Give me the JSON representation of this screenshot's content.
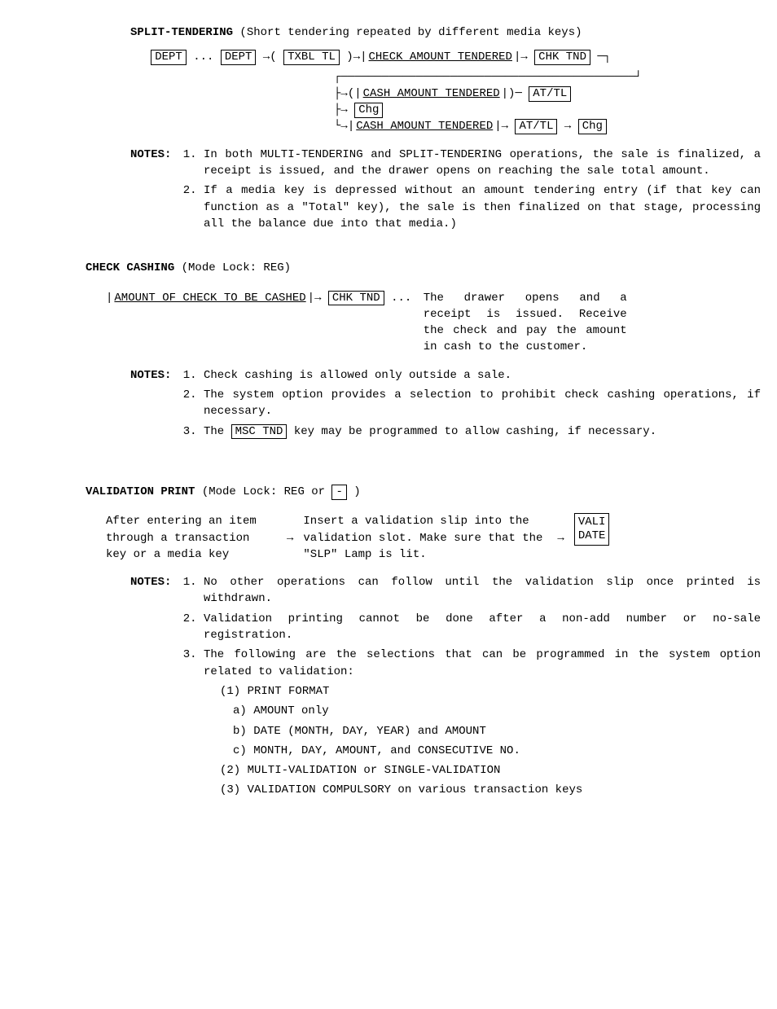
{
  "split": {
    "title": "SPLIT-TENDERING",
    "subtitle": " (Short tendering repeated by different media keys)",
    "dept": "DEPT",
    "ellipsis": " ... ",
    "txbl": "TXBL TL",
    "checkAmt": "CHECK AMOUNT TENDERED",
    "chkTnd": "CHK TND",
    "cashAmt": "CASH AMOUNT TENDERED",
    "atTl": "AT/TL",
    "chg": "Chg",
    "notesLabel": "NOTES:",
    "note1": "In both MULTI-TENDERING and SPLIT-TENDERING operations, the sale is finalized, a receipt is issued, and the drawer opens on reaching the sale total amount.",
    "note2": "If a media key is depressed without an amount tendering entry (if that key can function as a \"Total\" key), the sale is then finalized on that stage, processing all the balance due into that media.)"
  },
  "check": {
    "title": "CHECK CASHING",
    "mode": "  (Mode Lock: REG)",
    "amountEntry": "AMOUNT OF CHECK TO BE CASHED",
    "chkTnd": "CHK TND",
    "ellipsis": " ... ",
    "desc": "The drawer opens and a receipt is issued. Receive the check and pay the amount in cash to the customer.",
    "notesLabel": "NOTES:",
    "note1": "Check cashing is allowed only outside a sale.",
    "note2": "The system option provides a selection to prohibit check cashing operations, if necessary.",
    "note3a": "The ",
    "mscTnd": "MSC  TND",
    "note3b": " key may be programmed to allow cashing, if necessary."
  },
  "validation": {
    "title": "VALIDATION PRINT",
    "mode": "  (Mode Lock: REG or ",
    "modeKey": "-",
    "modeClose": " )",
    "col1": "After entering an item through a transaction key or a media key",
    "col2": "Insert a validation slip into the validation slot. Make sure that the \"SLP\" Lamp is lit.",
    "valiKey1": "VALI",
    "valiKey2": "DATE",
    "notesLabel": "NOTES:",
    "note1": "No other operations can follow until the validation slip once printed is withdrawn.",
    "note2": "Validation printing cannot be done after a non-add number or no-sale registration.",
    "note3": "The following are the selections that can be programmed in the system option related to validation:",
    "s1": "(1) PRINT FORMAT",
    "s1a": "a) AMOUNT only",
    "s1b": "b) DATE (MONTH, DAY, YEAR) and AMOUNT",
    "s1c": "c) MONTH, DAY, AMOUNT, and CONSECUTIVE NO.",
    "s2": "(2) MULTI-VALIDATION or SINGLE-VALIDATION",
    "s3": "(3) VALIDATION COMPULSORY on various transaction keys"
  }
}
